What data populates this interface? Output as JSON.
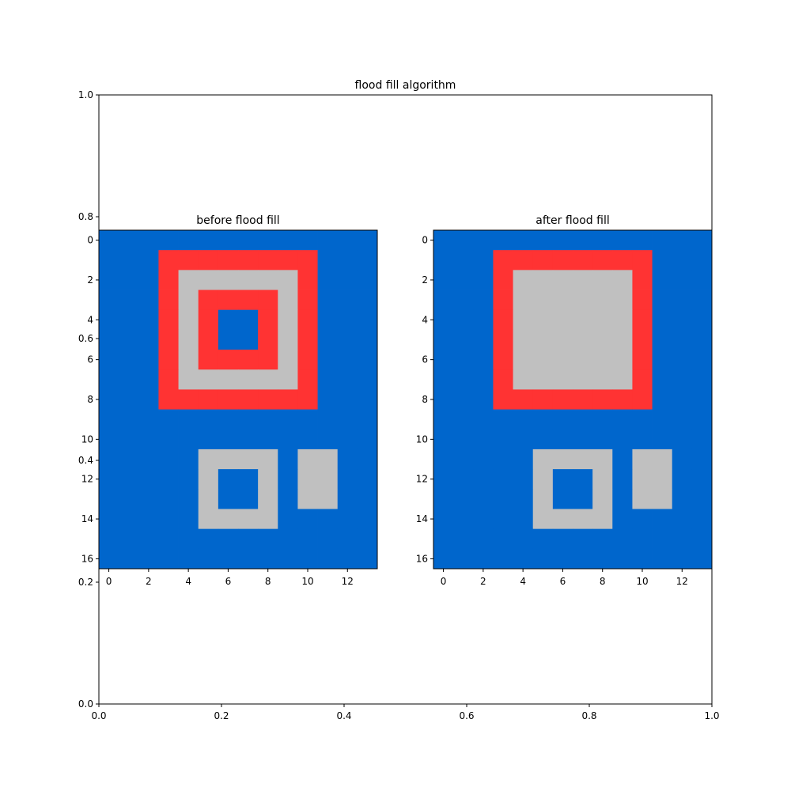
{
  "colors": {
    "background": "#0066cc",
    "red": "#ff3333",
    "gray": "#c0c0c0",
    "axis": "#000000"
  },
  "chart_data": [
    {
      "type": "axes",
      "title": "flood fill algorithm",
      "xlim": [
        0.0,
        1.0
      ],
      "ylim": [
        0.0,
        1.0
      ],
      "xticks": [
        "0.0",
        "0.2",
        "0.4",
        "0.6",
        "0.8",
        "1.0"
      ],
      "yticks": [
        "0.0",
        "0.2",
        "0.4",
        "0.6",
        "0.8",
        "1.0"
      ],
      "grid": false
    },
    {
      "type": "heatmap",
      "title": "before flood fill",
      "rows": 17,
      "cols": 14,
      "xticks": [
        "0",
        "2",
        "4",
        "6",
        "8",
        "10",
        "12"
      ],
      "yticks": [
        "0",
        "2",
        "4",
        "6",
        "8",
        "10",
        "12",
        "14",
        "16"
      ],
      "legend_values": {
        "0": "background",
        "1": "red",
        "2": "gray"
      },
      "grid": [
        [
          0,
          0,
          0,
          0,
          0,
          0,
          0,
          0,
          0,
          0,
          0,
          0,
          0,
          0
        ],
        [
          0,
          0,
          0,
          1,
          1,
          1,
          1,
          1,
          1,
          1,
          1,
          0,
          0,
          0
        ],
        [
          0,
          0,
          0,
          1,
          2,
          2,
          2,
          2,
          2,
          2,
          1,
          0,
          0,
          0
        ],
        [
          0,
          0,
          0,
          1,
          2,
          1,
          1,
          1,
          1,
          2,
          1,
          0,
          0,
          0
        ],
        [
          0,
          0,
          0,
          1,
          2,
          1,
          0,
          0,
          1,
          2,
          1,
          0,
          0,
          0
        ],
        [
          0,
          0,
          0,
          1,
          2,
          1,
          0,
          0,
          1,
          2,
          1,
          0,
          0,
          0
        ],
        [
          0,
          0,
          0,
          1,
          2,
          1,
          1,
          1,
          1,
          2,
          1,
          0,
          0,
          0
        ],
        [
          0,
          0,
          0,
          1,
          2,
          2,
          2,
          2,
          2,
          2,
          1,
          0,
          0,
          0
        ],
        [
          0,
          0,
          0,
          1,
          1,
          1,
          1,
          1,
          1,
          1,
          1,
          0,
          0,
          0
        ],
        [
          0,
          0,
          0,
          0,
          0,
          0,
          0,
          0,
          0,
          0,
          0,
          0,
          0,
          0
        ],
        [
          0,
          0,
          0,
          0,
          0,
          0,
          0,
          0,
          0,
          0,
          0,
          0,
          0,
          0
        ],
        [
          0,
          0,
          0,
          0,
          0,
          2,
          2,
          2,
          2,
          0,
          2,
          2,
          0,
          0
        ],
        [
          0,
          0,
          0,
          0,
          0,
          2,
          0,
          0,
          2,
          0,
          2,
          2,
          0,
          0
        ],
        [
          0,
          0,
          0,
          0,
          0,
          2,
          0,
          0,
          2,
          0,
          2,
          2,
          0,
          0
        ],
        [
          0,
          0,
          0,
          0,
          0,
          2,
          2,
          2,
          2,
          0,
          0,
          0,
          0,
          0
        ],
        [
          0,
          0,
          0,
          0,
          0,
          0,
          0,
          0,
          0,
          0,
          0,
          0,
          0,
          0
        ],
        [
          0,
          0,
          0,
          0,
          0,
          0,
          0,
          0,
          0,
          0,
          0,
          0,
          0,
          0
        ]
      ]
    },
    {
      "type": "heatmap",
      "title": "after flood fill",
      "rows": 17,
      "cols": 14,
      "xticks": [
        "0",
        "2",
        "4",
        "6",
        "8",
        "10",
        "12"
      ],
      "yticks": [
        "0",
        "2",
        "4",
        "6",
        "8",
        "10",
        "12",
        "14",
        "16"
      ],
      "legend_values": {
        "0": "background",
        "1": "red",
        "2": "gray"
      },
      "grid": [
        [
          0,
          0,
          0,
          0,
          0,
          0,
          0,
          0,
          0,
          0,
          0,
          0,
          0,
          0
        ],
        [
          0,
          0,
          0,
          1,
          1,
          1,
          1,
          1,
          1,
          1,
          1,
          0,
          0,
          0
        ],
        [
          0,
          0,
          0,
          1,
          2,
          2,
          2,
          2,
          2,
          2,
          1,
          0,
          0,
          0
        ],
        [
          0,
          0,
          0,
          1,
          2,
          2,
          2,
          2,
          2,
          2,
          1,
          0,
          0,
          0
        ],
        [
          0,
          0,
          0,
          1,
          2,
          2,
          2,
          2,
          2,
          2,
          1,
          0,
          0,
          0
        ],
        [
          0,
          0,
          0,
          1,
          2,
          2,
          2,
          2,
          2,
          2,
          1,
          0,
          0,
          0
        ],
        [
          0,
          0,
          0,
          1,
          2,
          2,
          2,
          2,
          2,
          2,
          1,
          0,
          0,
          0
        ],
        [
          0,
          0,
          0,
          1,
          2,
          2,
          2,
          2,
          2,
          2,
          1,
          0,
          0,
          0
        ],
        [
          0,
          0,
          0,
          1,
          1,
          1,
          1,
          1,
          1,
          1,
          1,
          0,
          0,
          0
        ],
        [
          0,
          0,
          0,
          0,
          0,
          0,
          0,
          0,
          0,
          0,
          0,
          0,
          0,
          0
        ],
        [
          0,
          0,
          0,
          0,
          0,
          0,
          0,
          0,
          0,
          0,
          0,
          0,
          0,
          0
        ],
        [
          0,
          0,
          0,
          0,
          0,
          2,
          2,
          2,
          2,
          0,
          2,
          2,
          0,
          0
        ],
        [
          0,
          0,
          0,
          0,
          0,
          2,
          0,
          0,
          2,
          0,
          2,
          2,
          0,
          0
        ],
        [
          0,
          0,
          0,
          0,
          0,
          2,
          0,
          0,
          2,
          0,
          2,
          2,
          0,
          0
        ],
        [
          0,
          0,
          0,
          0,
          0,
          2,
          2,
          2,
          2,
          0,
          0,
          0,
          0,
          0
        ],
        [
          0,
          0,
          0,
          0,
          0,
          0,
          0,
          0,
          0,
          0,
          0,
          0,
          0,
          0
        ],
        [
          0,
          0,
          0,
          0,
          0,
          0,
          0,
          0,
          0,
          0,
          0,
          0,
          0,
          0
        ]
      ]
    }
  ]
}
